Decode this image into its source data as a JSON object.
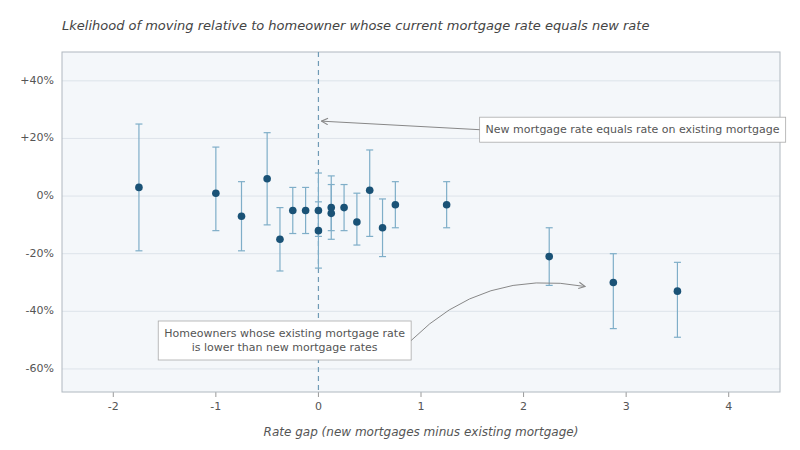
{
  "chart_data": {
    "type": "scatter",
    "title": "Lkelihood of moving relative to homeowner whose current mortgage rate equals new rate",
    "xlabel": "Rate gap (new mortgages minus existing mortgage)",
    "xlim": [
      -2.5,
      4.5
    ],
    "ylim": [
      -68,
      50
    ],
    "xticks": [
      -2,
      -1,
      0,
      1,
      2,
      3,
      4
    ],
    "yticks": [
      {
        "value": 40,
        "label": "+40%"
      },
      {
        "value": 20,
        "label": "+20%"
      },
      {
        "value": 0,
        "label": "0%"
      },
      {
        "value": -20,
        "label": "-20%"
      },
      {
        "value": -40,
        "label": "-40%"
      },
      {
        "value": -60,
        "label": "-60%"
      }
    ],
    "grid": true,
    "color": "#1a5276",
    "marker": "circle",
    "x": [
      -1.75,
      -1.0,
      -0.75,
      -0.5,
      -0.375,
      -0.25,
      -0.125,
      0.0,
      0.0,
      0.125,
      0.125,
      0.25,
      0.375,
      0.5,
      0.625,
      0.75,
      1.25,
      2.25,
      2.875,
      3.5
    ],
    "values": [
      3,
      1,
      -7,
      6,
      -15,
      -5,
      -5,
      -5,
      -12,
      -4,
      -6,
      -4,
      -9,
      2,
      -11,
      -3,
      -3,
      -21,
      -30,
      -33
    ],
    "error_low": [
      22,
      13,
      12,
      16,
      11,
      8,
      8,
      9,
      13,
      8,
      9,
      8,
      8,
      16,
      10,
      8,
      8,
      10,
      16,
      16
    ],
    "error_high": [
      22,
      16,
      12,
      16,
      11,
      8,
      8,
      13,
      10,
      8,
      13,
      8,
      10,
      14,
      10,
      8,
      8,
      10,
      10,
      10
    ],
    "vline": 0.0,
    "annotations": [
      {
        "text": "New mortgage rate equals rate on existing mortgage",
        "x": 0.02,
        "y": 26
      },
      {
        "text": "Homeowners whose existing mortgage rate\nis lower than new mortgage rates",
        "x": 2.6,
        "y": -30
      }
    ]
  }
}
